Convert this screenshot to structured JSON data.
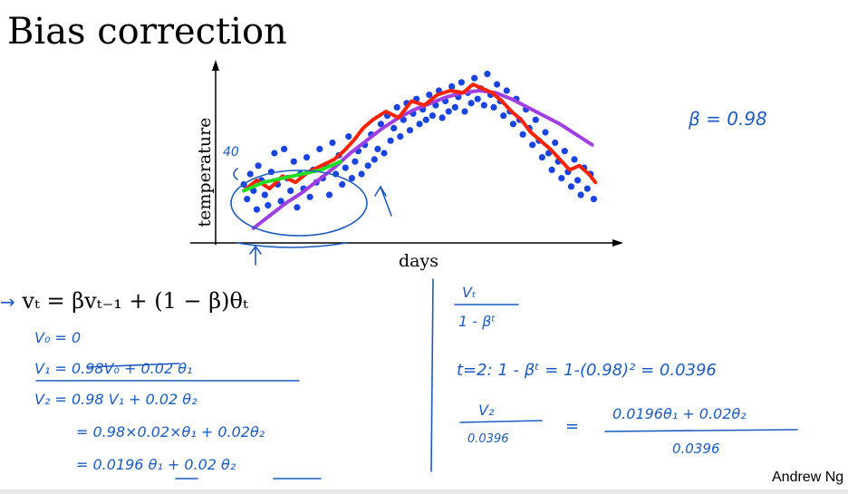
{
  "slide": {
    "title": "Bias correction",
    "author": "Andrew Ng"
  },
  "chart_data": {
    "type": "scatter",
    "xlabel": "days",
    "ylabel": "temperature",
    "grid": false,
    "legend": "none",
    "colors": {
      "points": "#1a44e0",
      "red_curve": "#ff2200",
      "green_curve": "#22dd22",
      "purple_curve": "#a040e0"
    },
    "series": [
      {
        "values": [
          [
            4,
            55
          ],
          [
            6,
            48
          ],
          [
            8,
            60
          ],
          [
            10,
            52
          ],
          [
            12,
            43
          ],
          [
            13,
            64
          ],
          [
            15,
            57
          ],
          [
            17,
            50
          ],
          [
            19,
            45
          ],
          [
            21,
            61
          ],
          [
            23,
            70
          ],
          [
            25,
            55
          ],
          [
            27,
            47
          ],
          [
            29,
            72
          ],
          [
            31,
            58
          ],
          [
            33,
            52
          ],
          [
            35,
            66
          ],
          [
            37,
            44
          ],
          [
            39,
            60
          ],
          [
            41,
            53
          ],
          [
            43,
            68
          ],
          [
            45,
            49
          ],
          [
            47,
            62
          ],
          [
            49,
            56
          ],
          [
            51,
            72
          ],
          [
            53,
            58
          ],
          [
            55,
            64
          ],
          [
            57,
            50
          ],
          [
            59,
            75
          ],
          [
            61,
            60
          ],
          [
            63,
            69
          ],
          [
            65,
            55
          ],
          [
            67,
            63
          ],
          [
            69,
            78
          ],
          [
            71,
            58
          ],
          [
            73,
            66
          ],
          [
            75,
            71
          ],
          [
            77,
            60
          ],
          [
            79,
            74
          ],
          [
            81,
            64
          ],
          [
            83,
            79
          ],
          [
            85,
            67
          ],
          [
            87,
            72
          ],
          [
            89,
            84
          ],
          [
            91,
            70
          ],
          [
            93,
            88
          ],
          [
            95,
            76
          ],
          [
            97,
            82
          ],
          [
            99,
            92
          ],
          [
            101,
            78
          ],
          [
            103,
            86
          ],
          [
            105,
            94
          ],
          [
            107,
            81
          ],
          [
            109,
            89
          ],
          [
            111,
            96
          ],
          [
            113,
            84
          ],
          [
            115,
            91
          ],
          [
            117,
            86
          ],
          [
            119,
            98
          ],
          [
            121,
            88
          ],
          [
            123,
            93
          ],
          [
            125,
            100
          ],
          [
            127,
            87
          ],
          [
            129,
            95
          ],
          [
            131,
            90
          ],
          [
            133,
            102
          ],
          [
            135,
            92
          ],
          [
            137,
            97
          ],
          [
            139,
            104
          ],
          [
            141,
            90
          ],
          [
            143,
            99
          ],
          [
            145,
            94
          ],
          [
            147,
            106
          ],
          [
            149,
            96
          ],
          [
            151,
            101
          ],
          [
            153,
            93
          ],
          [
            155,
            108
          ],
          [
            157,
            98
          ],
          [
            159,
            92
          ],
          [
            161,
            103
          ],
          [
            163,
            95
          ],
          [
            165,
            88
          ],
          [
            167,
            100
          ],
          [
            169,
            90
          ],
          [
            171,
            84
          ],
          [
            173,
            96
          ],
          [
            175,
            86
          ],
          [
            177,
            79
          ],
          [
            179,
            91
          ],
          [
            181,
            82
          ],
          [
            183,
            74
          ],
          [
            185,
            86
          ],
          [
            187,
            76
          ],
          [
            189,
            68
          ],
          [
            191,
            80
          ],
          [
            193,
            70
          ],
          [
            195,
            62
          ],
          [
            197,
            75
          ],
          [
            199,
            66
          ],
          [
            201,
            58
          ],
          [
            203,
            71
          ],
          [
            205,
            61
          ],
          [
            207,
            54
          ],
          [
            209,
            67
          ],
          [
            211,
            57
          ],
          [
            213,
            50
          ],
          [
            215,
            63
          ],
          [
            217,
            53
          ],
          [
            219,
            60
          ],
          [
            221,
            48
          ]
        ]
      },
      {
        "values": [
          [
            4,
            52
          ],
          [
            12,
            57
          ],
          [
            20,
            53
          ],
          [
            28,
            59
          ],
          [
            36,
            56
          ],
          [
            44,
            61
          ],
          [
            52,
            64
          ],
          [
            60,
            67
          ],
          [
            66,
            71
          ],
          [
            72,
            76
          ],
          [
            78,
            82
          ],
          [
            84,
            86
          ],
          [
            92,
            90
          ],
          [
            100,
            87
          ],
          [
            108,
            95
          ],
          [
            116,
            93
          ],
          [
            124,
            98
          ],
          [
            132,
            100
          ],
          [
            140,
            99
          ],
          [
            146,
            103
          ],
          [
            152,
            101
          ],
          [
            158,
            99
          ],
          [
            164,
            95
          ],
          [
            170,
            90
          ],
          [
            176,
            86
          ],
          [
            182,
            80
          ],
          [
            188,
            76
          ],
          [
            194,
            72
          ],
          [
            200,
            67
          ],
          [
            206,
            62
          ],
          [
            212,
            64
          ],
          [
            218,
            60
          ],
          [
            222,
            56
          ]
        ]
      },
      {
        "values": [
          [
            4,
            52
          ],
          [
            10,
            54
          ],
          [
            16,
            56
          ],
          [
            22,
            57
          ],
          [
            28,
            58
          ],
          [
            34,
            59
          ],
          [
            40,
            60
          ],
          [
            46,
            61
          ],
          [
            52,
            62
          ],
          [
            58,
            64
          ],
          [
            64,
            66
          ]
        ]
      },
      {
        "values": [
          [
            10,
            34
          ],
          [
            20,
            40
          ],
          [
            30,
            46
          ],
          [
            40,
            51
          ],
          [
            50,
            57
          ],
          [
            60,
            63
          ],
          [
            70,
            70
          ],
          [
            80,
            76
          ],
          [
            90,
            82
          ],
          [
            100,
            87
          ],
          [
            110,
            91
          ],
          [
            120,
            94
          ],
          [
            130,
            97
          ],
          [
            140,
            99
          ],
          [
            150,
            100
          ],
          [
            160,
            99
          ],
          [
            170,
            96
          ],
          [
            180,
            92
          ],
          [
            190,
            88
          ],
          [
            200,
            84
          ],
          [
            210,
            79
          ],
          [
            220,
            74
          ]
        ]
      }
    ]
  },
  "handwriting": {
    "beta_note": "β = 0.98",
    "label_40": "40",
    "eq_lines": [
      "V₀ = 0",
      "V₁ = 0.98V₀ + 0.02 θ₁",
      "V₂ = 0.98 V₁ + 0.02 θ₂",
      "= 0.98×0.02×θ₁ + 0.02θ₂",
      "= 0.0196 θ₁ + 0.02 θ₂"
    ],
    "fraction_num": "Vₜ",
    "fraction_den": "1 - βᵗ",
    "t2_line": "t=2:  1 - βᵗ  =  1-(0.98)² = 0.0396",
    "v2_num": "V₂",
    "v2_den": "0.0396",
    "eq_sign": "=",
    "result_num": "0.0196θ₁ + 0.02θ₂",
    "result_den": "0.0396"
  },
  "equation": {
    "arrow": "→",
    "formula": "vₜ = βvₜ₋₁ + (1 − β)θₜ"
  }
}
